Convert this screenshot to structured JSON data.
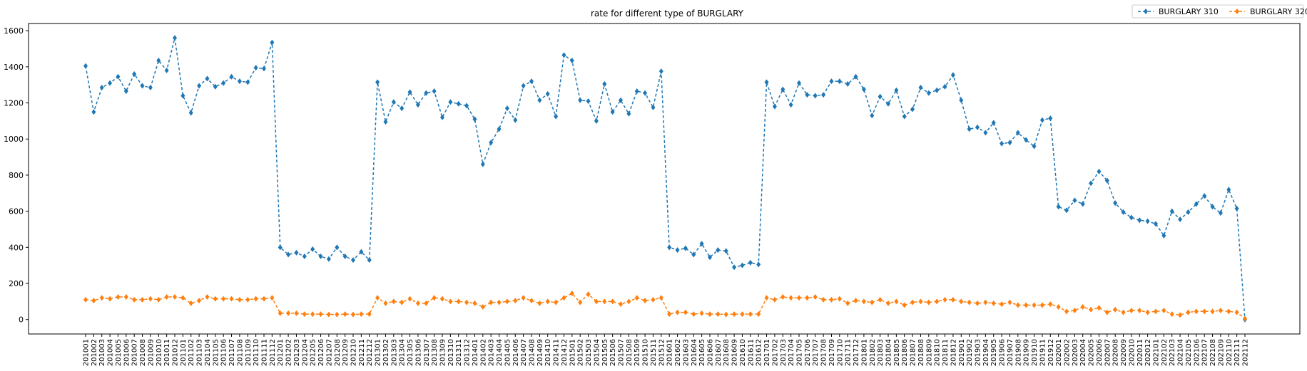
{
  "chart_data": {
    "type": "line",
    "title": "rate for different type of BURGLARY",
    "xlabel": "",
    "ylabel": "",
    "ylim": [
      -80,
      1640
    ],
    "yticks": [
      0,
      200,
      400,
      600,
      800,
      1000,
      1200,
      1400,
      1600
    ],
    "grid": false,
    "legend_position": "top-right",
    "x": [
      "201001",
      "201002",
      "201003",
      "201004",
      "201005",
      "201006",
      "201007",
      "201008",
      "201009",
      "201010",
      "201011",
      "201012",
      "201101",
      "201102",
      "201103",
      "201104",
      "201105",
      "201106",
      "201107",
      "201108",
      "201109",
      "201110",
      "201111",
      "201112",
      "201201",
      "201202",
      "201203",
      "201204",
      "201205",
      "201206",
      "201207",
      "201208",
      "201209",
      "201210",
      "201211",
      "201212",
      "201301",
      "201302",
      "201303",
      "201304",
      "201305",
      "201306",
      "201307",
      "201308",
      "201309",
      "201310",
      "201311",
      "201312",
      "201401",
      "201402",
      "201403",
      "201404",
      "201405",
      "201406",
      "201407",
      "201408",
      "201409",
      "201410",
      "201411",
      "201412",
      "201501",
      "201502",
      "201503",
      "201504",
      "201505",
      "201506",
      "201507",
      "201508",
      "201509",
      "201510",
      "201511",
      "201512",
      "201601",
      "201602",
      "201603",
      "201604",
      "201605",
      "201606",
      "201607",
      "201608",
      "201609",
      "201610",
      "201611",
      "201612",
      "201701",
      "201702",
      "201703",
      "201704",
      "201705",
      "201706",
      "201707",
      "201708",
      "201709",
      "201710",
      "201711",
      "201712",
      "201801",
      "201802",
      "201803",
      "201804",
      "201805",
      "201806",
      "201807",
      "201808",
      "201809",
      "201810",
      "201811",
      "201812",
      "201901",
      "201902",
      "201903",
      "201904",
      "201905",
      "201906",
      "201907",
      "201908",
      "201909",
      "201910",
      "201911",
      "201912",
      "202001",
      "202002",
      "202003",
      "202004",
      "202005",
      "202006",
      "202007",
      "202008",
      "202009",
      "202010",
      "202011",
      "202012",
      "202101",
      "202102",
      "202103",
      "202104",
      "202105",
      "202106",
      "202107",
      "202108",
      "202109",
      "202110",
      "202111",
      "202112"
    ],
    "series": [
      {
        "name": "BURGLARY 310",
        "color": "#1f77b4",
        "marker": "diamond",
        "linestyle": "dashed",
        "values": [
          1405,
          1150,
          1285,
          1310,
          1345,
          1265,
          1360,
          1295,
          1285,
          1435,
          1380,
          1560,
          1240,
          1145,
          1295,
          1335,
          1290,
          1310,
          1345,
          1320,
          1315,
          1395,
          1390,
          1535,
          400,
          360,
          370,
          350,
          390,
          350,
          335,
          400,
          350,
          330,
          375,
          330,
          1315,
          1095,
          1205,
          1170,
          1260,
          1190,
          1255,
          1265,
          1120,
          1205,
          1195,
          1185,
          1110,
          860,
          980,
          1055,
          1170,
          1105,
          1295,
          1320,
          1215,
          1250,
          1125,
          1465,
          1435,
          1215,
          1210,
          1100,
          1305,
          1150,
          1215,
          1140,
          1265,
          1255,
          1175,
          1375,
          400,
          385,
          395,
          360,
          420,
          345,
          385,
          380,
          290,
          300,
          315,
          305,
          1315,
          1180,
          1275,
          1190,
          1310,
          1245,
          1240,
          1245,
          1320,
          1320,
          1305,
          1345,
          1275,
          1130,
          1235,
          1195,
          1270,
          1125,
          1165,
          1285,
          1255,
          1270,
          1290,
          1355,
          1215,
          1055,
          1065,
          1035,
          1090,
          975,
          980,
          1035,
          995,
          960,
          1105,
          1115,
          625,
          605,
          660,
          640,
          755,
          820,
          770,
          645,
          595,
          565,
          550,
          545,
          530,
          465,
          600,
          555,
          595,
          640,
          685,
          625,
          590,
          720,
          615,
          0
        ]
      },
      {
        "name": "BURGLARY 320",
        "color": "#ff7f0e",
        "marker": "diamond",
        "linestyle": "dashed",
        "values": [
          110,
          105,
          120,
          115,
          125,
          125,
          110,
          110,
          115,
          110,
          125,
          125,
          120,
          90,
          105,
          125,
          115,
          115,
          115,
          110,
          110,
          115,
          115,
          120,
          35,
          35,
          35,
          30,
          30,
          30,
          28,
          28,
          30,
          28,
          30,
          30,
          120,
          90,
          100,
          95,
          115,
          90,
          90,
          120,
          115,
          100,
          100,
          95,
          90,
          70,
          95,
          95,
          100,
          105,
          120,
          105,
          90,
          100,
          95,
          120,
          145,
          95,
          140,
          100,
          100,
          100,
          85,
          100,
          120,
          105,
          110,
          120,
          30,
          40,
          40,
          30,
          35,
          30,
          30,
          28,
          30,
          30,
          30,
          30,
          120,
          110,
          125,
          120,
          120,
          120,
          125,
          110,
          110,
          115,
          90,
          105,
          100,
          95,
          110,
          90,
          100,
          80,
          95,
          100,
          95,
          100,
          110,
          110,
          100,
          95,
          90,
          95,
          90,
          85,
          95,
          80,
          80,
          80,
          80,
          85,
          70,
          45,
          50,
          70,
          55,
          65,
          40,
          55,
          40,
          50,
          50,
          40,
          45,
          50,
          30,
          25,
          40,
          45,
          45,
          45,
          50,
          45,
          40,
          5
        ]
      }
    ]
  }
}
